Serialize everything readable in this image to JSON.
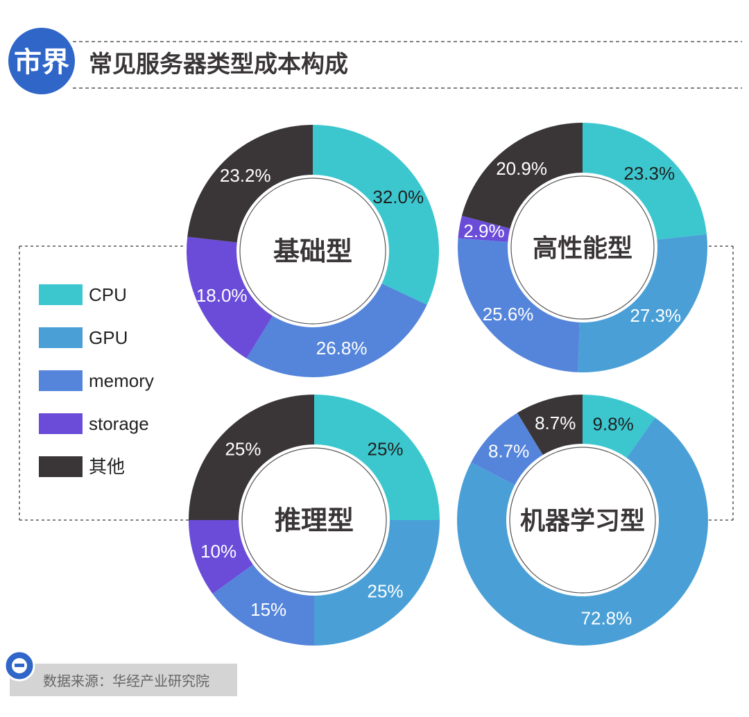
{
  "header": {
    "brand": "市界",
    "title": "常见服务器类型成本构成"
  },
  "legend": [
    {
      "label": "CPU",
      "color": "#3cc7cf"
    },
    {
      "label": "GPU",
      "color": "#4aa0d6"
    },
    {
      "label": "memory",
      "color": "#5585db"
    },
    {
      "label": "storage",
      "color": "#6a4cd9"
    },
    {
      "label": "其他",
      "color": "#3a3637"
    }
  ],
  "source": {
    "icon": "minus-circle-icon",
    "text": "数据来源：华经产业研究院"
  },
  "chart_data": [
    {
      "type": "pie",
      "title": "基础型",
      "categories": [
        "CPU",
        "GPU",
        "memory",
        "storage",
        "其他"
      ],
      "values": [
        32.0,
        0,
        26.8,
        18.0,
        23.2
      ],
      "labels": [
        "32.0%",
        "",
        "26.8%",
        "18.0%",
        "23.2%"
      ]
    },
    {
      "type": "pie",
      "title": "高性能型",
      "categories": [
        "CPU",
        "GPU",
        "memory",
        "storage",
        "其他"
      ],
      "values": [
        23.3,
        27.3,
        25.6,
        2.9,
        20.9
      ],
      "labels": [
        "23.3%",
        "27.3%",
        "25.6%",
        "2.9%",
        "20.9%"
      ]
    },
    {
      "type": "pie",
      "title": "推理型",
      "categories": [
        "CPU",
        "GPU",
        "memory",
        "storage",
        "其他"
      ],
      "values": [
        25,
        25,
        15,
        10,
        25
      ],
      "labels": [
        "25%",
        "25%",
        "15%",
        "10%",
        "25%"
      ]
    },
    {
      "type": "pie",
      "title": "机器学习型",
      "categories": [
        "CPU",
        "GPU",
        "memory",
        "storage",
        "其他"
      ],
      "values": [
        9.8,
        72.8,
        8.7,
        0,
        8.7
      ],
      "labels": [
        "9.8%",
        "72.8%",
        "8.7%",
        "",
        "8.7%"
      ]
    }
  ]
}
